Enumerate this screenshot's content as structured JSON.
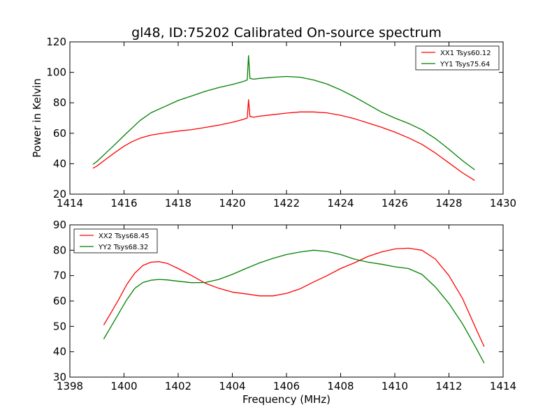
{
  "chart_data": [
    {
      "type": "line",
      "title": "gl48, ID:75202 Calibrated On-source spectrum",
      "xlabel": "",
      "ylabel": "Power in Kelvin",
      "xlim": [
        1414,
        1430
      ],
      "ylim": [
        20,
        120
      ],
      "xticks": [
        "1414",
        "1416",
        "1418",
        "1420",
        "1422",
        "1424",
        "1426",
        "1428",
        "1430"
      ],
      "yticks": [
        "20",
        "40",
        "60",
        "80",
        "100",
        "120"
      ],
      "legend_position": "top-right",
      "series": [
        {
          "name": "XX1 Tsys60.12",
          "color": "#ff0000",
          "x": [
            1414.85,
            1415.0,
            1415.3,
            1415.6,
            1416.0,
            1416.3,
            1416.6,
            1417.0,
            1417.5,
            1418.0,
            1418.5,
            1419.0,
            1419.5,
            1420.0,
            1420.4,
            1420.55,
            1420.6,
            1420.65,
            1420.8,
            1421.0,
            1421.5,
            1422.0,
            1422.5,
            1423.0,
            1423.5,
            1424.0,
            1424.5,
            1425.0,
            1425.5,
            1426.0,
            1426.5,
            1427.0,
            1427.5,
            1428.0,
            1428.5,
            1428.95
          ],
          "y": [
            37,
            38.5,
            42.5,
            46.5,
            51.5,
            54.5,
            56.8,
            58.8,
            60.2,
            61.4,
            62.4,
            63.8,
            65.3,
            67.2,
            69.1,
            70,
            82,
            71,
            70.5,
            71.2,
            72.2,
            73.2,
            74,
            74,
            73.4,
            71.8,
            69.6,
            66.8,
            64,
            60.8,
            57,
            52.7,
            47,
            40.5,
            34,
            29
          ]
        },
        {
          "name": "YY1 Tsys75.64",
          "color": "#008000",
          "x": [
            1414.85,
            1415.0,
            1415.3,
            1415.6,
            1416.0,
            1416.3,
            1416.6,
            1417.0,
            1417.5,
            1418.0,
            1418.5,
            1419.0,
            1419.5,
            1420.0,
            1420.4,
            1420.55,
            1420.6,
            1420.65,
            1420.8,
            1421.0,
            1421.5,
            1422.0,
            1422.5,
            1423.0,
            1423.5,
            1424.0,
            1424.5,
            1425.0,
            1425.5,
            1426.0,
            1426.5,
            1427.0,
            1427.5,
            1428.0,
            1428.5,
            1428.95
          ],
          "y": [
            39.5,
            41.5,
            46.5,
            51.5,
            58.5,
            63.5,
            68.5,
            73.5,
            77.5,
            81.5,
            84.5,
            87.5,
            90,
            92,
            94,
            95,
            111,
            96,
            95.5,
            96,
            96.8,
            97.3,
            96.8,
            95,
            92.3,
            88.5,
            84,
            79,
            74,
            70,
            66.5,
            62.3,
            56.5,
            49.5,
            42,
            36
          ]
        }
      ]
    },
    {
      "type": "line",
      "title": "",
      "xlabel": "Frequency (MHz)",
      "ylabel": "",
      "xlim": [
        1398,
        1414
      ],
      "ylim": [
        30,
        90
      ],
      "xticks": [
        "1398",
        "1400",
        "1402",
        "1404",
        "1406",
        "1408",
        "1410",
        "1412",
        "1414"
      ],
      "yticks": [
        "30",
        "40",
        "50",
        "60",
        "70",
        "80",
        "90"
      ],
      "legend_position": "top-left",
      "series": [
        {
          "name": "XX2 Tsys68.45",
          "color": "#ff0000",
          "x": [
            1399.25,
            1399.5,
            1399.8,
            1400.1,
            1400.4,
            1400.7,
            1401.0,
            1401.3,
            1401.6,
            1402.0,
            1402.5,
            1403.0,
            1403.5,
            1404.0,
            1404.5,
            1405.0,
            1405.5,
            1406.0,
            1406.5,
            1407.0,
            1407.5,
            1408.0,
            1408.5,
            1409.0,
            1409.5,
            1410.0,
            1410.5,
            1411.0,
            1411.5,
            1412.0,
            1412.5,
            1413.0,
            1413.3
          ],
          "y": [
            50.5,
            55,
            60.5,
            66.5,
            71,
            74,
            75.3,
            75.5,
            74.8,
            72.8,
            70,
            67,
            65,
            63.5,
            62.8,
            62,
            62,
            63,
            64.8,
            67.5,
            70,
            72.8,
            75,
            77.5,
            79.3,
            80.5,
            80.8,
            80,
            76.5,
            70,
            61,
            49,
            42
          ]
        },
        {
          "name": "YY2 Tsys68.32",
          "color": "#008000",
          "x": [
            1399.25,
            1399.5,
            1399.8,
            1400.1,
            1400.4,
            1400.7,
            1401.0,
            1401.3,
            1401.6,
            1402.0,
            1402.5,
            1403.0,
            1403.5,
            1404.0,
            1404.5,
            1405.0,
            1405.5,
            1406.0,
            1406.5,
            1407.0,
            1407.5,
            1408.0,
            1408.5,
            1409.0,
            1409.5,
            1410.0,
            1410.5,
            1411.0,
            1411.5,
            1412.0,
            1412.5,
            1413.0,
            1413.3
          ],
          "y": [
            45,
            49.5,
            55,
            60.5,
            65,
            67.3,
            68.2,
            68.5,
            68.3,
            67.8,
            67.2,
            67.3,
            68.5,
            70.5,
            72.8,
            75,
            76.8,
            78.3,
            79.3,
            80,
            79.5,
            78.3,
            76.5,
            75.3,
            74.5,
            73.5,
            72.8,
            70.5,
            65.5,
            59,
            51,
            41.5,
            35.5
          ]
        }
      ]
    }
  ]
}
